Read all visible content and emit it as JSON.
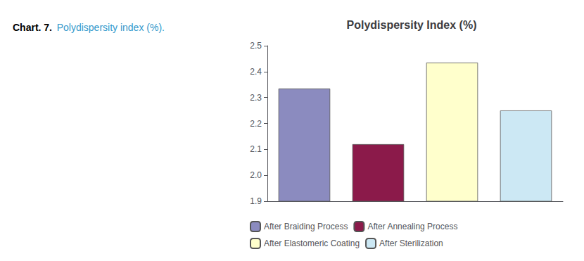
{
  "chart_data": {
    "type": "bar",
    "title": "Polydispersity Index (%)",
    "annotations": [
      "Chart. 7.",
      "Polydispersity index (%)."
    ],
    "categories": [
      "After Braiding Process",
      "After Annealing Process",
      "After Elastomeric Coating",
      "After Sterilization"
    ],
    "values": [
      2.335,
      2.12,
      2.435,
      2.25
    ],
    "colors": [
      "#8b8bbf",
      "#8b1a4a",
      "#ffffcc",
      "#cce8f4"
    ],
    "ylim": [
      1.9,
      2.5
    ],
    "yticks": [
      1.9,
      {
        "value": 2.0,
        "label": "2.0"
      },
      2.1,
      2.2,
      2.3,
      2.4,
      2.5
    ],
    "tick_labels": "y",
    "legend": "bottom",
    "grid": false
  }
}
